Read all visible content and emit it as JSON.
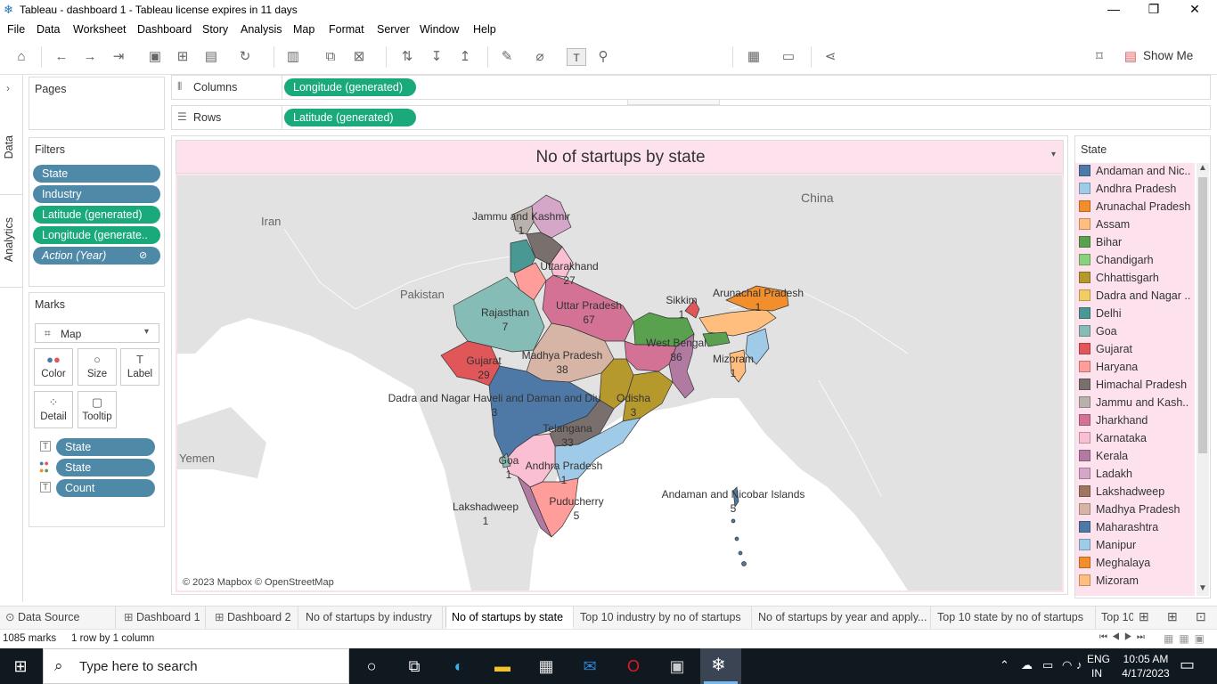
{
  "window": {
    "title": "Tableau - dashboard 1 - Tableau license expires in 11 days",
    "minimize": "—",
    "restore": "❐",
    "close": "✕"
  },
  "menu": [
    "File",
    "Data",
    "Worksheet",
    "Dashboard",
    "Story",
    "Analysis",
    "Map",
    "Format",
    "Server",
    "Window",
    "Help"
  ],
  "toolbar": {
    "show_me": "Show Me"
  },
  "side_tabs": {
    "data": "Data",
    "analytics": "Analytics"
  },
  "pages": {
    "title": "Pages"
  },
  "filters": {
    "title": "Filters",
    "items": [
      "State",
      "Industry",
      "Latitude (generated)",
      "Longitude (generate..",
      "Action (Year)"
    ]
  },
  "marks": {
    "title": "Marks",
    "type": "Map",
    "buttons": [
      "Color",
      "Size",
      "Label",
      "Detail",
      "Tooltip"
    ],
    "fields": [
      "State",
      "State",
      "Count"
    ]
  },
  "shelves": {
    "columns_label": "Columns",
    "columns_pill": "Longitude (generated)",
    "rows_label": "Rows",
    "rows_pill": "Latitude (generated)"
  },
  "view": {
    "title": "No of startups by state",
    "attribution": "© 2023 Mapbox © OpenStreetMap",
    "base_labels": {
      "china": "China",
      "iran": "Iran",
      "pakistan": "Pakistan",
      "yemen": "Yemen"
    },
    "state_labels": [
      {
        "name": "Jammu and Kashmir",
        "count": "1"
      },
      {
        "name": "Uttarakhand",
        "count": "27"
      },
      {
        "name": "Rajasthan",
        "count": "7"
      },
      {
        "name": "Uttar Pradesh",
        "count": "67"
      },
      {
        "name": "Sikkim",
        "count": "1"
      },
      {
        "name": "Arunachal Pradesh",
        "count": "1"
      },
      {
        "name": "West Bengal",
        "count": "86"
      },
      {
        "name": "Mizoram",
        "count": "1"
      },
      {
        "name": "Gujarat",
        "count": "29"
      },
      {
        "name": "Madhya Pradesh",
        "count": "38"
      },
      {
        "name": "Dadra and Nagar Haveli and Daman and Diu",
        "count": "3"
      },
      {
        "name": "Odisha",
        "count": "3"
      },
      {
        "name": "Telangana",
        "count": "33"
      },
      {
        "name": "Goa",
        "count": "1"
      },
      {
        "name": "Andhra Pradesh",
        "count": "1"
      },
      {
        "name": "Andaman and Nicobar Islands",
        "count": "5"
      },
      {
        "name": "Lakshadweep",
        "count": "1"
      },
      {
        "name": "Puducherry",
        "count": "5"
      }
    ]
  },
  "legend": {
    "title": "State",
    "items": [
      {
        "label": "Andaman and Nic..",
        "color": "#4e79a7"
      },
      {
        "label": "Andhra Pradesh",
        "color": "#a0cbe8"
      },
      {
        "label": "Arunachal Pradesh",
        "color": "#f28e2b"
      },
      {
        "label": "Assam",
        "color": "#ffbe7d"
      },
      {
        "label": "Bihar",
        "color": "#59a14f"
      },
      {
        "label": "Chandigarh",
        "color": "#8cd17d"
      },
      {
        "label": "Chhattisgarh",
        "color": "#b6992d"
      },
      {
        "label": "Dadra and Nagar ..",
        "color": "#f1ce63"
      },
      {
        "label": "Delhi",
        "color": "#499894"
      },
      {
        "label": "Goa",
        "color": "#86bcb6"
      },
      {
        "label": "Gujarat",
        "color": "#e15759"
      },
      {
        "label": "Haryana",
        "color": "#ff9d9a"
      },
      {
        "label": "Himachal Pradesh",
        "color": "#79706e"
      },
      {
        "label": "Jammu and Kash..",
        "color": "#bab0ac"
      },
      {
        "label": "Jharkhand",
        "color": "#d37295"
      },
      {
        "label": "Karnataka",
        "color": "#fabfd2"
      },
      {
        "label": "Kerala",
        "color": "#b07aa1"
      },
      {
        "label": "Ladakh",
        "color": "#d4a6c8"
      },
      {
        "label": "Lakshadweep",
        "color": "#9d7660"
      },
      {
        "label": "Madhya Pradesh",
        "color": "#d7b5a6"
      },
      {
        "label": "Maharashtra",
        "color": "#4e79a7"
      },
      {
        "label": "Manipur",
        "color": "#a0cbe8"
      },
      {
        "label": "Meghalaya",
        "color": "#f28e2b"
      },
      {
        "label": "Mizoram",
        "color": "#ffbe7d"
      }
    ]
  },
  "sheet_tabs": [
    {
      "label": "Data Source",
      "icon": "database-icon"
    },
    {
      "label": "Dashboard 1",
      "icon": "dashboard-icon"
    },
    {
      "label": "Dashboard 2",
      "icon": "dashboard-icon"
    },
    {
      "label": "No of startups by industry",
      "icon": ""
    },
    {
      "label": "No of startups by state",
      "icon": ""
    },
    {
      "label": "Top 10 industry by no of startups",
      "icon": ""
    },
    {
      "label": "No of startups by year and apply...",
      "icon": ""
    },
    {
      "label": "Top 10 state by no of startups",
      "icon": ""
    },
    {
      "label": "Top 10",
      "icon": ""
    }
  ],
  "status": {
    "marks": "1085 marks",
    "layout": "1 row by 1 column"
  },
  "taskbar": {
    "search_placeholder": "Type here to search",
    "lang_top": "ENG",
    "lang_bottom": "IN",
    "time": "10:05 AM",
    "date": "4/17/2023"
  }
}
